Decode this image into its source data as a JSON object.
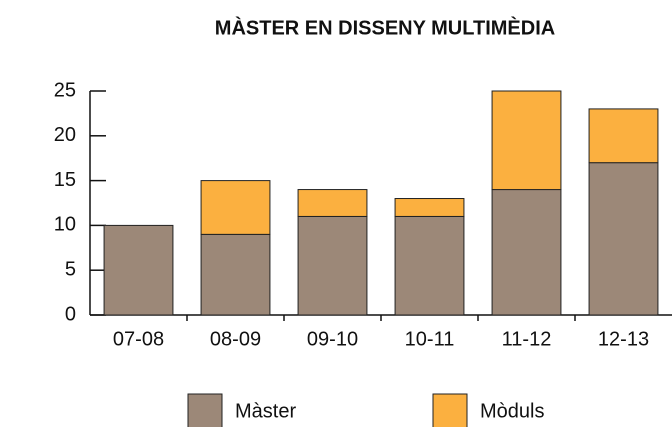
{
  "chart_data": {
    "type": "stacked-bar",
    "title": "MÀSTER EN DISSENY MULTIMÈDIA",
    "categories": [
      "07-08",
      "08-09",
      "09-10",
      "10-11",
      "11-12",
      "12-13"
    ],
    "series": [
      {
        "name": "Màster",
        "color": "#9c8878",
        "values": [
          10,
          9,
          11,
          11,
          14,
          17
        ]
      },
      {
        "name": "Mòduls",
        "color": "#fbb040",
        "values": [
          0,
          6,
          3,
          2,
          11,
          6
        ]
      }
    ],
    "ylim": [
      0,
      25
    ],
    "yticks": [
      0,
      5,
      10,
      15,
      20,
      25
    ],
    "grid": false,
    "legend": "bottom"
  }
}
